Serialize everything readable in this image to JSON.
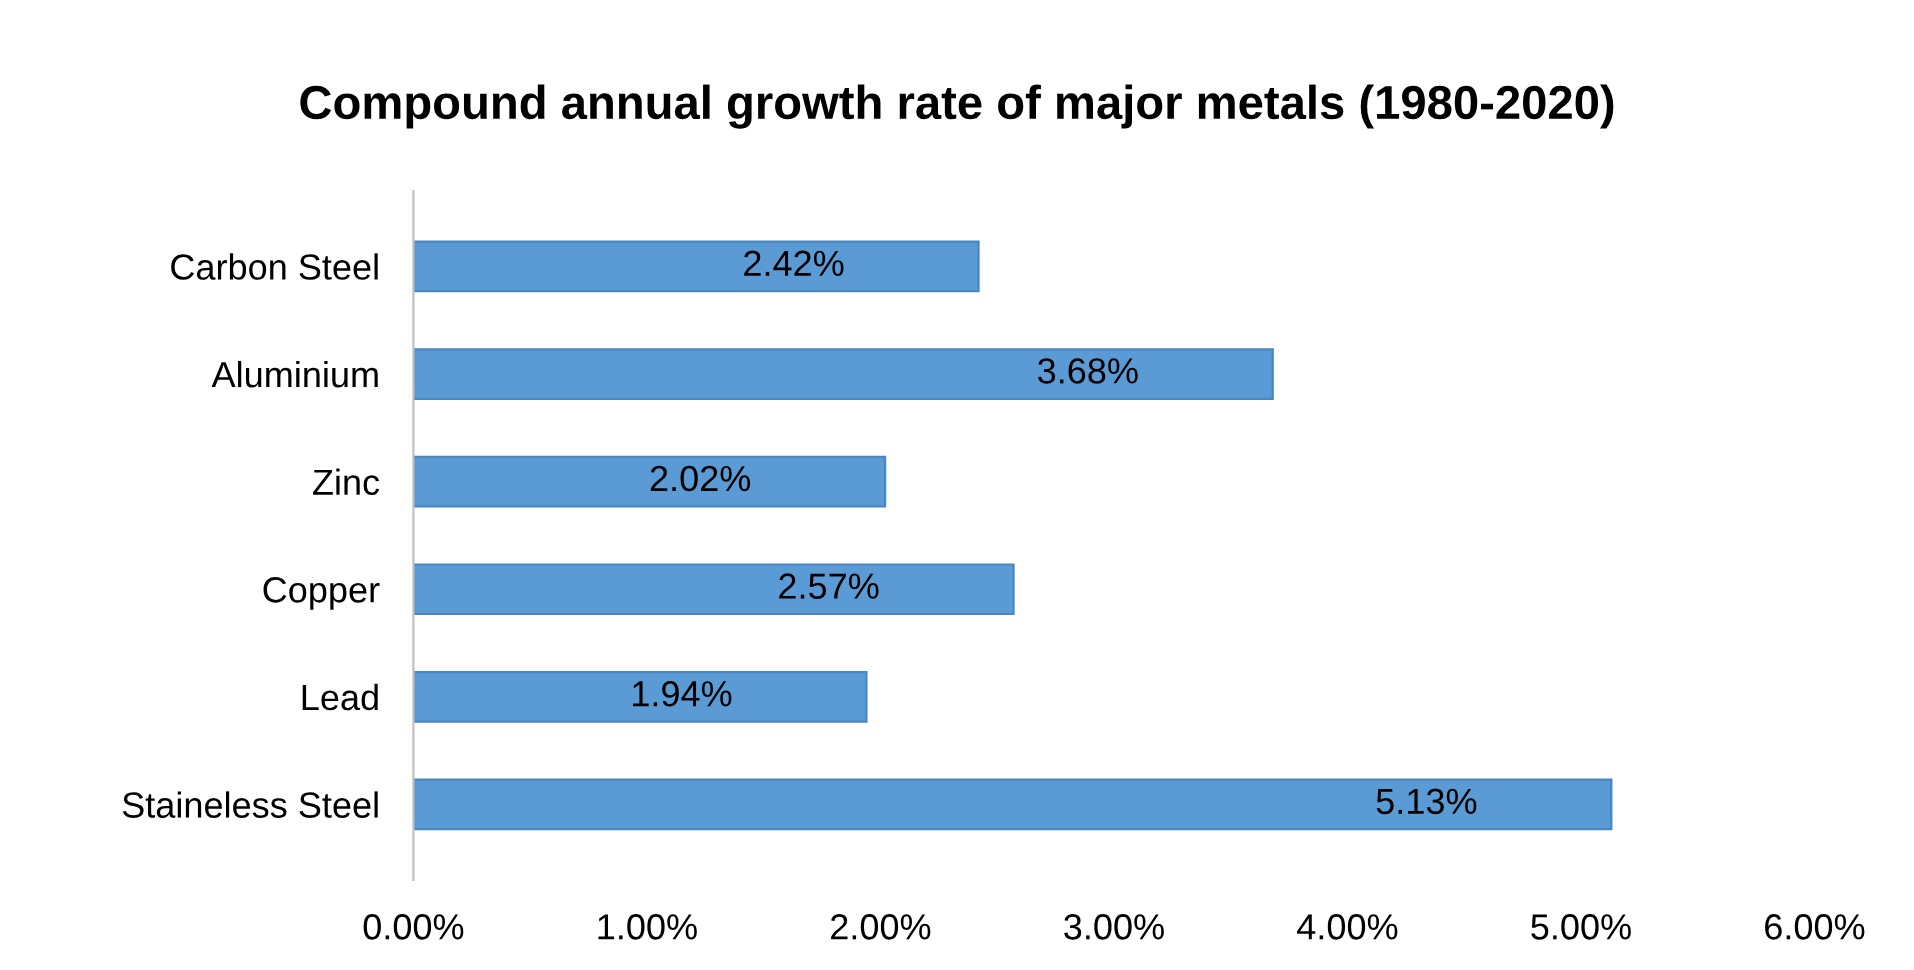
{
  "chart_data": {
    "type": "bar",
    "orientation": "horizontal",
    "title": "Compound annual growth rate of major metals (1980-2020)",
    "categories": [
      "Carbon Steel",
      "Aluminium",
      "Zinc",
      "Copper",
      "Lead",
      "Staineless Steel"
    ],
    "values": [
      2.42,
      3.68,
      2.02,
      2.57,
      1.94,
      5.13
    ],
    "value_labels": [
      "2.42%",
      "3.68%",
      "2.02%",
      "2.57%",
      "1.94%",
      "5.13%"
    ],
    "color": "#5b9bd5",
    "xlim": [
      0,
      6
    ],
    "xticks": [
      {
        "value": 0,
        "label": "0.00%"
      },
      {
        "value": 1,
        "label": "1.00%"
      },
      {
        "value": 2,
        "label": "2.00%"
      },
      {
        "value": 3,
        "label": "3.00%"
      },
      {
        "value": 4,
        "label": "4.00%"
      },
      {
        "value": 5,
        "label": "5.00%"
      },
      {
        "value": 6,
        "label": "6.00%"
      }
    ],
    "grid": false,
    "legend": false
  }
}
